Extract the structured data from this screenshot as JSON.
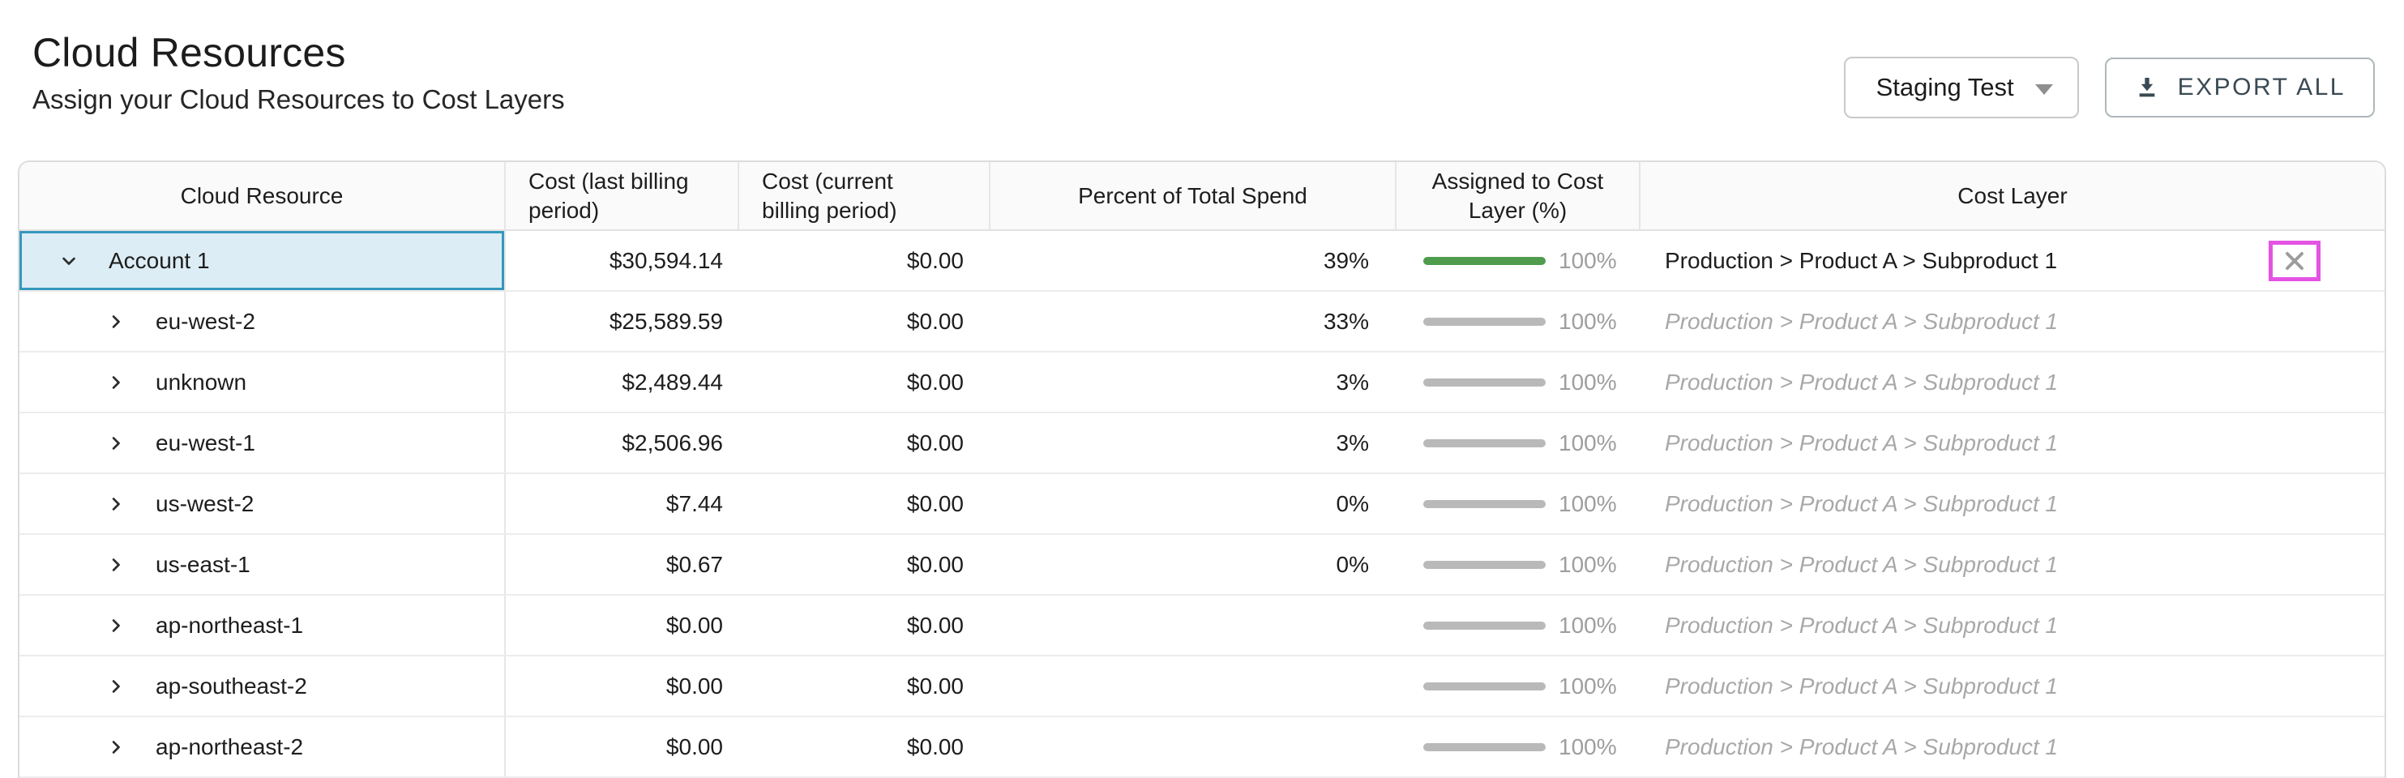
{
  "page": {
    "title": "Cloud Resources",
    "subtitle": "Assign your Cloud Resources to Cost Layers"
  },
  "toolbar": {
    "environment_selector": {
      "value": "Staging Test"
    },
    "export_button": {
      "label": "EXPORT ALL"
    }
  },
  "table": {
    "columns": [
      {
        "label": "Cloud Resource",
        "align": "center"
      },
      {
        "label": "Cost (last billing period)",
        "align": "left"
      },
      {
        "label": "Cost (current billing period)",
        "align": "left"
      },
      {
        "label": "Percent of Total Spend",
        "align": "center"
      },
      {
        "label": "Assigned to Cost Layer (%)",
        "align": "center"
      },
      {
        "label": "Cost Layer",
        "align": "center"
      }
    ],
    "rows": [
      {
        "name": "Account 1",
        "level": 0,
        "expanded": true,
        "selected": true,
        "cost_last": "$30,594.14",
        "cost_current": "$0.00",
        "percent_of_total": "39%",
        "assigned_pct_label": "100%",
        "assigned_fill_pct": 100,
        "bar_style": "green",
        "cost_layer": "Production > Product A > Subproduct 1",
        "cost_layer_inherited": false,
        "has_clear_button": true
      },
      {
        "name": "eu-west-2",
        "level": 1,
        "expanded": false,
        "selected": false,
        "cost_last": "$25,589.59",
        "cost_current": "$0.00",
        "percent_of_total": "33%",
        "assigned_pct_label": "100%",
        "assigned_fill_pct": 100,
        "bar_style": "gray",
        "cost_layer": "Production > Product A > Subproduct 1",
        "cost_layer_inherited": true,
        "has_clear_button": false
      },
      {
        "name": "unknown",
        "level": 1,
        "expanded": false,
        "selected": false,
        "cost_last": "$2,489.44",
        "cost_current": "$0.00",
        "percent_of_total": "3%",
        "assigned_pct_label": "100%",
        "assigned_fill_pct": 100,
        "bar_style": "gray",
        "cost_layer": "Production > Product A > Subproduct 1",
        "cost_layer_inherited": true,
        "has_clear_button": false
      },
      {
        "name": "eu-west-1",
        "level": 1,
        "expanded": false,
        "selected": false,
        "cost_last": "$2,506.96",
        "cost_current": "$0.00",
        "percent_of_total": "3%",
        "assigned_pct_label": "100%",
        "assigned_fill_pct": 100,
        "bar_style": "gray",
        "cost_layer": "Production > Product A > Subproduct 1",
        "cost_layer_inherited": true,
        "has_clear_button": false
      },
      {
        "name": "us-west-2",
        "level": 1,
        "expanded": false,
        "selected": false,
        "cost_last": "$7.44",
        "cost_current": "$0.00",
        "percent_of_total": "0%",
        "assigned_pct_label": "100%",
        "assigned_fill_pct": 100,
        "bar_style": "gray",
        "cost_layer": "Production > Product A > Subproduct 1",
        "cost_layer_inherited": true,
        "has_clear_button": false
      },
      {
        "name": "us-east-1",
        "level": 1,
        "expanded": false,
        "selected": false,
        "cost_last": "$0.67",
        "cost_current": "$0.00",
        "percent_of_total": "0%",
        "assigned_pct_label": "100%",
        "assigned_fill_pct": 100,
        "bar_style": "gray",
        "cost_layer": "Production > Product A > Subproduct 1",
        "cost_layer_inherited": true,
        "has_clear_button": false
      },
      {
        "name": "ap-northeast-1",
        "level": 1,
        "expanded": false,
        "selected": false,
        "cost_last": "$0.00",
        "cost_current": "$0.00",
        "percent_of_total": "",
        "assigned_pct_label": "100%",
        "assigned_fill_pct": 100,
        "bar_style": "gray",
        "cost_layer": "Production > Product A > Subproduct 1",
        "cost_layer_inherited": true,
        "has_clear_button": false
      },
      {
        "name": "ap-southeast-2",
        "level": 1,
        "expanded": false,
        "selected": false,
        "cost_last": "$0.00",
        "cost_current": "$0.00",
        "percent_of_total": "",
        "assigned_pct_label": "100%",
        "assigned_fill_pct": 100,
        "bar_style": "gray",
        "cost_layer": "Production > Product A > Subproduct 1",
        "cost_layer_inherited": true,
        "has_clear_button": false
      },
      {
        "name": "ap-northeast-2",
        "level": 1,
        "expanded": false,
        "selected": false,
        "cost_last": "$0.00",
        "cost_current": "$0.00",
        "percent_of_total": "",
        "assigned_pct_label": "100%",
        "assigned_fill_pct": 100,
        "bar_style": "gray",
        "cost_layer": "Production > Product A > Subproduct 1",
        "cost_layer_inherited": true,
        "has_clear_button": false
      }
    ]
  },
  "colors": {
    "bar_green": "#4f9c4d",
    "bar_gray": "#b9b9b9",
    "selected_cell_bg": "#ddedf5",
    "selected_cell_border": "#3598bc",
    "annotation_highlight": "#e453e3",
    "export_text": "#3a4a54"
  },
  "icons": {
    "export": "download-icon",
    "selector": "caret-down-icon",
    "expanded_row": "chevron-down-icon",
    "collapsed_row": "chevron-right-icon",
    "clear_assignment": "x-icon"
  }
}
